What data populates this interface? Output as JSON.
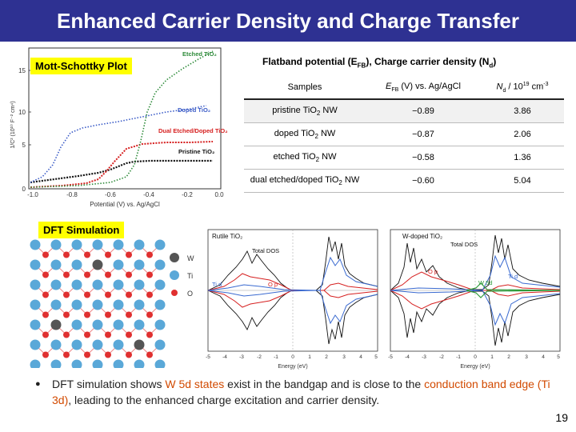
{
  "slide": {
    "title": "Enhanced Carrier Density and Charge Transfer",
    "page_number": "19"
  },
  "mott_schottky": {
    "label": "Mott-Schottky Plot",
    "y_axis_label": "1/C² (10¹⁰ F⁻² cm⁴)",
    "x_axis_label": "Potential (V) vs. Ag/AgCl",
    "y_ticks": [
      "0",
      "5",
      "10",
      "15"
    ],
    "x_ticks": [
      "-1.0",
      "-0.8",
      "-0.6",
      "-0.4",
      "-0.2",
      "0.0"
    ],
    "series_labels": {
      "etched": "Etched TiO₂",
      "doped": "Doped TiO₂",
      "dual": "Dual Etched/Doped TiO₂",
      "pristine": "Pristine TiO₂"
    },
    "colors": {
      "etched": "#2e8b3a",
      "doped": "#3a5bc7",
      "dual": "#d62020",
      "pristine": "#111111"
    }
  },
  "flatband": {
    "heading": "Flatband potential (E",
    "heading_sub": "FB",
    "heading_mid": "), Charge carrier density (N",
    "heading_sub2": "d",
    "heading_end": ")",
    "col_samples": "Samples",
    "col_efb_main": "E",
    "col_efb_sub": "FB",
    "col_efb_rest": " (V) vs. Ag/AgCl",
    "col_nd_main": "N",
    "col_nd_sub": "d",
    "col_nd_mid": " / 10",
    "col_nd_sup": "19",
    "col_nd_end": " cm",
    "col_nd_sup2": "-3",
    "rows": [
      {
        "pre": "pristine TiO",
        "sub": "2",
        "post": " NW",
        "efb": "−0.89",
        "nd": "3.86"
      },
      {
        "pre": "doped TiO",
        "sub": "2",
        "post": " NW",
        "efb": "−0.87",
        "nd": "2.06"
      },
      {
        "pre": "etched TiO",
        "sub": "2",
        "post": " NW",
        "efb": "−0.58",
        "nd": "1.36"
      },
      {
        "pre": "dual etched/doped TiO",
        "sub": "2",
        "post": " NW",
        "efb": "−0.60",
        "nd": "5.04"
      }
    ]
  },
  "dft": {
    "label": "DFT Simulation",
    "legend": {
      "w": "W",
      "ti": "Ti",
      "o": "O"
    },
    "plot1": {
      "title": "Rutile TiO₂",
      "total": "Total DOS",
      "ti": "Ti d",
      "o": "O p"
    },
    "plot2": {
      "title": "W-doped TiO₂",
      "total": "Total DOS",
      "op": "O p",
      "ti": "Ti d",
      "w": "W 5d"
    },
    "x_ticks": [
      "-5",
      "-4",
      "-3",
      "-2",
      "-1",
      "0",
      "1",
      "2",
      "3",
      "4",
      "5"
    ],
    "x_label": "Energy (eV)"
  },
  "description": {
    "bullet": "●",
    "t1": "DFT simulation shows ",
    "h1": "W 5d states",
    "t2": " exist in the bandgap and is close to the ",
    "h2": "conduction band edge (Ti 3d)",
    "t3": ", leading to the enhanced charge excitation and carrier density."
  }
}
